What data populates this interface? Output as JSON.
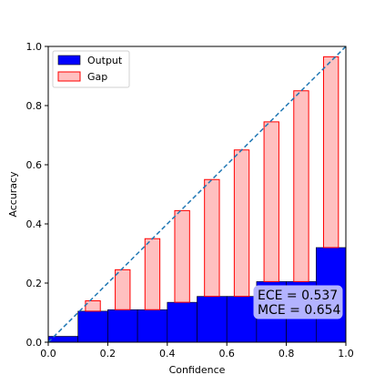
{
  "chart_data": {
    "type": "bar",
    "xlabel": "Confidence",
    "ylabel": "Accuracy",
    "xlim": [
      0,
      1
    ],
    "ylim": [
      0,
      1
    ],
    "xticks": [
      "0.0",
      "0.2",
      "0.4",
      "0.6",
      "0.8",
      "1.0"
    ],
    "yticks": [
      "0.0",
      "0.2",
      "0.4",
      "0.6",
      "0.8",
      "1.0"
    ],
    "bin_centers": [
      0.05,
      0.15,
      0.25,
      0.35,
      0.45,
      0.55,
      0.65,
      0.75,
      0.85,
      0.95
    ],
    "series": [
      {
        "name": "Output",
        "values": [
          0.02,
          0.105,
          0.11,
          0.11,
          0.135,
          0.155,
          0.155,
          0.205,
          0.205,
          0.32
        ],
        "color": "#0000ff"
      },
      {
        "name": "Gap",
        "top": [
          0.02,
          0.14,
          0.245,
          0.35,
          0.445,
          0.55,
          0.65,
          0.745,
          0.85,
          0.965
        ],
        "color": "#ffc0c0",
        "edge_color": "#ff0000"
      }
    ],
    "diagonal": {
      "style": "dashed",
      "color": "#1f77b4"
    },
    "legend_position": "top-left",
    "annotation": [
      "ECE = 0.537",
      "MCE = 0.654"
    ],
    "annotation_bg": "#b3b3ff",
    "grid": false
  }
}
